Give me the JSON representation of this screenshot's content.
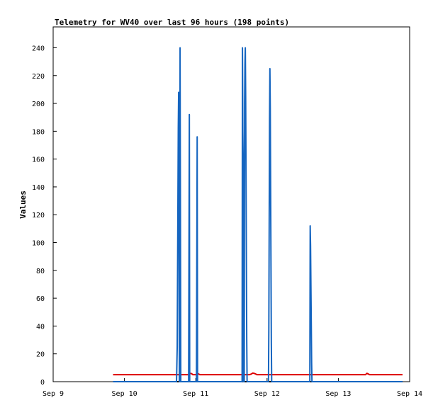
{
  "chart_data": {
    "type": "line",
    "title": "Telemetry for WV40 over last 96 hours (198 points)",
    "xlabel": "",
    "ylabel": "Values",
    "x_ticks": [
      "Sep 9",
      "Sep 10",
      "Sep 11",
      "Sep 12",
      "Sep 13",
      "Sep 14"
    ],
    "xlim_days": [
      9,
      14
    ],
    "ylim": [
      0,
      255
    ],
    "y_ticks": [
      0,
      20,
      40,
      60,
      80,
      100,
      120,
      140,
      160,
      180,
      200,
      220,
      240
    ],
    "grid": false,
    "x_axis_unit": "day of September",
    "series": [
      {
        "color": "#1565c0",
        "x": [
          9.84,
          10.73,
          10.74,
          10.745,
          10.75,
          10.755,
          10.76,
          10.765,
          10.77,
          10.775,
          10.78,
          10.79,
          10.8,
          10.805,
          10.81,
          10.82,
          10.83,
          10.84,
          10.845,
          10.85,
          10.86,
          10.9,
          10.91,
          10.915,
          10.92,
          10.93,
          11.01,
          11.02,
          11.025,
          11.03,
          11.04,
          11.65,
          11.655,
          11.66,
          11.665,
          11.67,
          11.675,
          11.68,
          11.685,
          11.69,
          11.695,
          11.7,
          11.705,
          11.71,
          11.715,
          11.72,
          11.725,
          11.73,
          11.735,
          11.74,
          11.745,
          11.75,
          12.02,
          12.025,
          12.03,
          12.035,
          12.04,
          12.045,
          12.05,
          12.055,
          12.06,
          12.065,
          12.07,
          12.075,
          12.08,
          12.085,
          12.09,
          12.1,
          12.6,
          12.605,
          12.61,
          12.615,
          12.62,
          12.625,
          12.63,
          12.635,
          12.64,
          12.645,
          12.65,
          13.9
        ],
        "values": [
          0,
          0,
          25,
          78,
          130,
          182,
          208,
          130,
          0,
          0,
          240,
          0,
          0,
          0,
          0,
          0,
          0,
          0,
          0,
          0,
          0,
          0,
          192,
          0,
          0,
          0,
          0,
          176,
          0,
          0,
          0,
          0,
          240,
          180,
          160,
          0,
          0,
          0,
          200,
          228,
          240,
          205,
          150,
          90,
          30,
          0,
          0,
          0,
          0,
          0,
          0,
          0,
          0,
          38,
          112,
          187,
          225,
          197,
          140,
          85,
          28,
          0,
          0,
          0,
          0,
          0,
          0,
          0,
          0,
          112,
          98,
          70,
          43,
          14,
          0,
          0,
          0,
          0,
          0,
          0
        ]
      },
      {
        "color": "#dd0000",
        "x": [
          9.84,
          10.9,
          10.92,
          10.94,
          10.96,
          11.0,
          11.02,
          11.04,
          11.06,
          11.75,
          11.78,
          11.8,
          11.83,
          11.86,
          13.38,
          13.4,
          13.42,
          13.44,
          13.9
        ],
        "values": [
          5,
          5,
          6,
          5.8,
          5,
          5,
          6,
          5.5,
          5,
          5,
          5.5,
          6.2,
          5.8,
          5,
          5,
          6,
          5.5,
          5,
          5
        ]
      },
      {
        "color": "#000000",
        "x": [
          9.84,
          13.9
        ],
        "values": [
          0,
          0
        ]
      }
    ]
  }
}
